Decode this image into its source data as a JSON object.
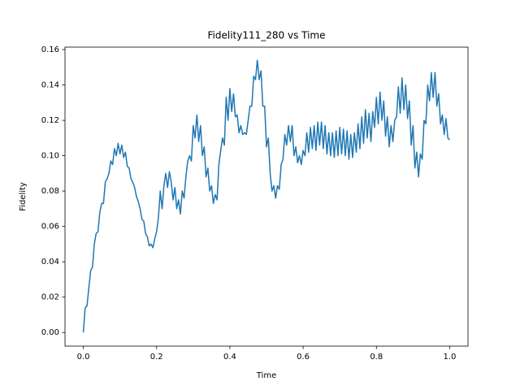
{
  "chart_data": {
    "type": "line",
    "title": "Fidelity111_280 vs Time",
    "x_label": "Time",
    "y_label": "Fidelity",
    "x": [
      0,
      0.005,
      0.01,
      0.015,
      0.02,
      0.025,
      0.03,
      0.035,
      0.04,
      0.045,
      0.05,
      0.055,
      0.06,
      0.065,
      0.07,
      0.075,
      0.08,
      0.085,
      0.09,
      0.095,
      0.1,
      0.105,
      0.11,
      0.115,
      0.12,
      0.125,
      0.13,
      0.135,
      0.14,
      0.145,
      0.15,
      0.155,
      0.16,
      0.165,
      0.17,
      0.175,
      0.18,
      0.185,
      0.19,
      0.195,
      0.2,
      0.205,
      0.21,
      0.215,
      0.22,
      0.225,
      0.23,
      0.235,
      0.24,
      0.245,
      0.25,
      0.255,
      0.26,
      0.265,
      0.27,
      0.275,
      0.28,
      0.285,
      0.29,
      0.295,
      0.3,
      0.305,
      0.31,
      0.315,
      0.32,
      0.325,
      0.33,
      0.335,
      0.34,
      0.345,
      0.35,
      0.355,
      0.36,
      0.365,
      0.37,
      0.375,
      0.38,
      0.385,
      0.39,
      0.395,
      0.4,
      0.405,
      0.41,
      0.415,
      0.42,
      0.425,
      0.43,
      0.435,
      0.44,
      0.445,
      0.45,
      0.455,
      0.46,
      0.465,
      0.47,
      0.475,
      0.48,
      0.485,
      0.49,
      0.495,
      0.5,
      0.505,
      0.51,
      0.515,
      0.52,
      0.525,
      0.53,
      0.535,
      0.54,
      0.545,
      0.55,
      0.555,
      0.56,
      0.565,
      0.57,
      0.575,
      0.58,
      0.585,
      0.59,
      0.595,
      0.6,
      0.605,
      0.61,
      0.615,
      0.62,
      0.625,
      0.63,
      0.635,
      0.64,
      0.645,
      0.65,
      0.655,
      0.66,
      0.665,
      0.67,
      0.675,
      0.68,
      0.685,
      0.69,
      0.695,
      0.7,
      0.705,
      0.71,
      0.715,
      0.72,
      0.725,
      0.73,
      0.735,
      0.74,
      0.745,
      0.75,
      0.755,
      0.76,
      0.765,
      0.77,
      0.775,
      0.78,
      0.785,
      0.79,
      0.795,
      0.8,
      0.805,
      0.81,
      0.815,
      0.82,
      0.825,
      0.83,
      0.835,
      0.84,
      0.845,
      0.85,
      0.855,
      0.86,
      0.865,
      0.87,
      0.875,
      0.88,
      0.885,
      0.89,
      0.895,
      0.9,
      0.905,
      0.91,
      0.915,
      0.92,
      0.925,
      0.93,
      0.935,
      0.94,
      0.945,
      0.95,
      0.955,
      0.96,
      0.965,
      0.97,
      0.975,
      0.98,
      0.985,
      0.99,
      0.995,
      1
    ],
    "series": [
      {
        "color": "#1f77b4",
        "values": [
          0,
          0.014,
          0.015,
          0.025,
          0.035,
          0.037,
          0.05,
          0.056,
          0.057,
          0.068,
          0.073,
          0.073,
          0.085,
          0.087,
          0.09,
          0.097,
          0.095,
          0.104,
          0.1,
          0.107,
          0.101,
          0.106,
          0.099,
          0.102,
          0.094,
          0.093,
          0.087,
          0.085,
          0.082,
          0.077,
          0.074,
          0.07,
          0.064,
          0.063,
          0.056,
          0.054,
          0.049,
          0.05,
          0.048,
          0.053,
          0.057,
          0.065,
          0.08,
          0.07,
          0.083,
          0.09,
          0.082,
          0.091,
          0.085,
          0.075,
          0.082,
          0.07,
          0.075,
          0.067,
          0.08,
          0.076,
          0.088,
          0.097,
          0.1,
          0.097,
          0.117,
          0.11,
          0.123,
          0.108,
          0.117,
          0.1,
          0.105,
          0.088,
          0.093,
          0.08,
          0.083,
          0.073,
          0.078,
          0.075,
          0.095,
          0.103,
          0.11,
          0.106,
          0.133,
          0.12,
          0.138,
          0.125,
          0.135,
          0.122,
          0.123,
          0.113,
          0.117,
          0.112,
          0.113,
          0.112,
          0.12,
          0.128,
          0.128,
          0.145,
          0.143,
          0.154,
          0.143,
          0.148,
          0.128,
          0.128,
          0.105,
          0.11,
          0.09,
          0.08,
          0.083,
          0.076,
          0.083,
          0.081,
          0.095,
          0.098,
          0.112,
          0.106,
          0.117,
          0.108,
          0.117,
          0.1,
          0.105,
          0.096,
          0.1,
          0.095,
          0.103,
          0.1,
          0.113,
          0.102,
          0.116,
          0.104,
          0.117,
          0.103,
          0.119,
          0.106,
          0.119,
          0.104,
          0.117,
          0.101,
          0.113,
          0.1,
          0.113,
          0.099,
          0.114,
          0.1,
          0.116,
          0.101,
          0.115,
          0.1,
          0.114,
          0.098,
          0.112,
          0.099,
          0.113,
          0.102,
          0.118,
          0.104,
          0.122,
          0.107,
          0.126,
          0.11,
          0.124,
          0.108,
          0.125,
          0.116,
          0.133,
          0.118,
          0.136,
          0.12,
          0.131,
          0.111,
          0.122,
          0.105,
          0.117,
          0.108,
          0.12,
          0.122,
          0.139,
          0.124,
          0.144,
          0.126,
          0.14,
          0.121,
          0.131,
          0.106,
          0.117,
          0.093,
          0.102,
          0.088,
          0.101,
          0.098,
          0.12,
          0.118,
          0.14,
          0.131,
          0.147,
          0.133,
          0.147,
          0.128,
          0.135,
          0.118,
          0.123,
          0.112,
          0.121,
          0.11,
          0.109
        ]
      }
    ],
    "xlim": [
      -0.05,
      1.05
    ],
    "xticks": [
      {
        "value": 0,
        "label": "0.0"
      },
      {
        "value": 0.2,
        "label": "0.2"
      },
      {
        "value": 0.4,
        "label": "0.4"
      },
      {
        "value": 0.6,
        "label": "0.6"
      },
      {
        "value": 0.8,
        "label": "0.8"
      },
      {
        "value": 1,
        "label": "1.0"
      }
    ],
    "ylim": [
      -0.0077,
      0.1614
    ],
    "yticks": [
      {
        "value": 0,
        "label": "0.00"
      },
      {
        "value": 0.02,
        "label": "0.02"
      },
      {
        "value": 0.04,
        "label": "0.04"
      },
      {
        "value": 0.06,
        "label": "0.06"
      },
      {
        "value": 0.08,
        "label": "0.08"
      },
      {
        "value": 0.1,
        "label": "0.10"
      },
      {
        "value": 0.12,
        "label": "0.12"
      },
      {
        "value": 0.14,
        "label": "0.14"
      },
      {
        "value": 0.16,
        "label": "0.16"
      }
    ],
    "grid": false
  }
}
